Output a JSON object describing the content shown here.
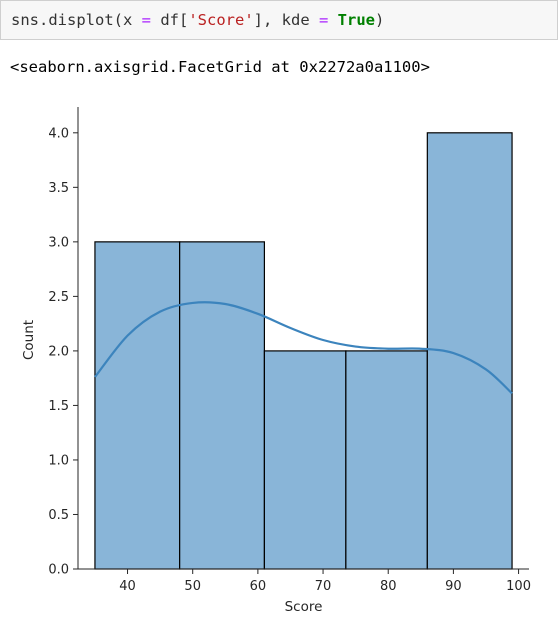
{
  "code": {
    "func": "sns.displot(x ",
    "eq1": "=",
    "mid1": " df[",
    "str": "'Score'",
    "mid2": "], kde ",
    "eq2": "=",
    "sp": " ",
    "kw": "True",
    "end": ")"
  },
  "output_text": "<seaborn.axisgrid.FacetGrid at 0x2272a0a1100>",
  "colors": {
    "bar_fill": "#89b5d8",
    "bar_edge": "#000000",
    "kde_line": "#3c84bd",
    "axis": "#262626"
  },
  "chart_data": {
    "type": "bar",
    "title": "",
    "xlabel": "Score",
    "ylabel": "Count",
    "xlim": [
      32.4,
      101.6
    ],
    "ylim": [
      0,
      4.2
    ],
    "xticks": [
      40,
      50,
      60,
      70,
      80,
      90,
      100
    ],
    "yticks": [
      0.0,
      0.5,
      1.0,
      1.5,
      2.0,
      2.5,
      3.0,
      3.5,
      4.0
    ],
    "ytick_labels": [
      "0.0",
      "0.5",
      "1.0",
      "1.5",
      "2.0",
      "2.5",
      "3.0",
      "3.5",
      "4.0"
    ],
    "bins": [
      {
        "start": 35,
        "end": 48,
        "count": 3
      },
      {
        "start": 48,
        "end": 61,
        "count": 3
      },
      {
        "start": 61,
        "end": 73.5,
        "count": 2
      },
      {
        "start": 73.5,
        "end": 86,
        "count": 2
      },
      {
        "start": 86,
        "end": 99,
        "count": 4
      }
    ],
    "kde": {
      "name": "kde",
      "x": [
        35,
        40,
        45,
        50,
        55,
        60,
        65,
        70,
        75,
        80,
        85,
        90,
        95,
        99
      ],
      "y": [
        1.76,
        2.14,
        2.36,
        2.44,
        2.43,
        2.34,
        2.21,
        2.1,
        2.04,
        2.02,
        2.02,
        1.98,
        1.83,
        1.61
      ]
    },
    "grid": false,
    "legend": "none"
  }
}
